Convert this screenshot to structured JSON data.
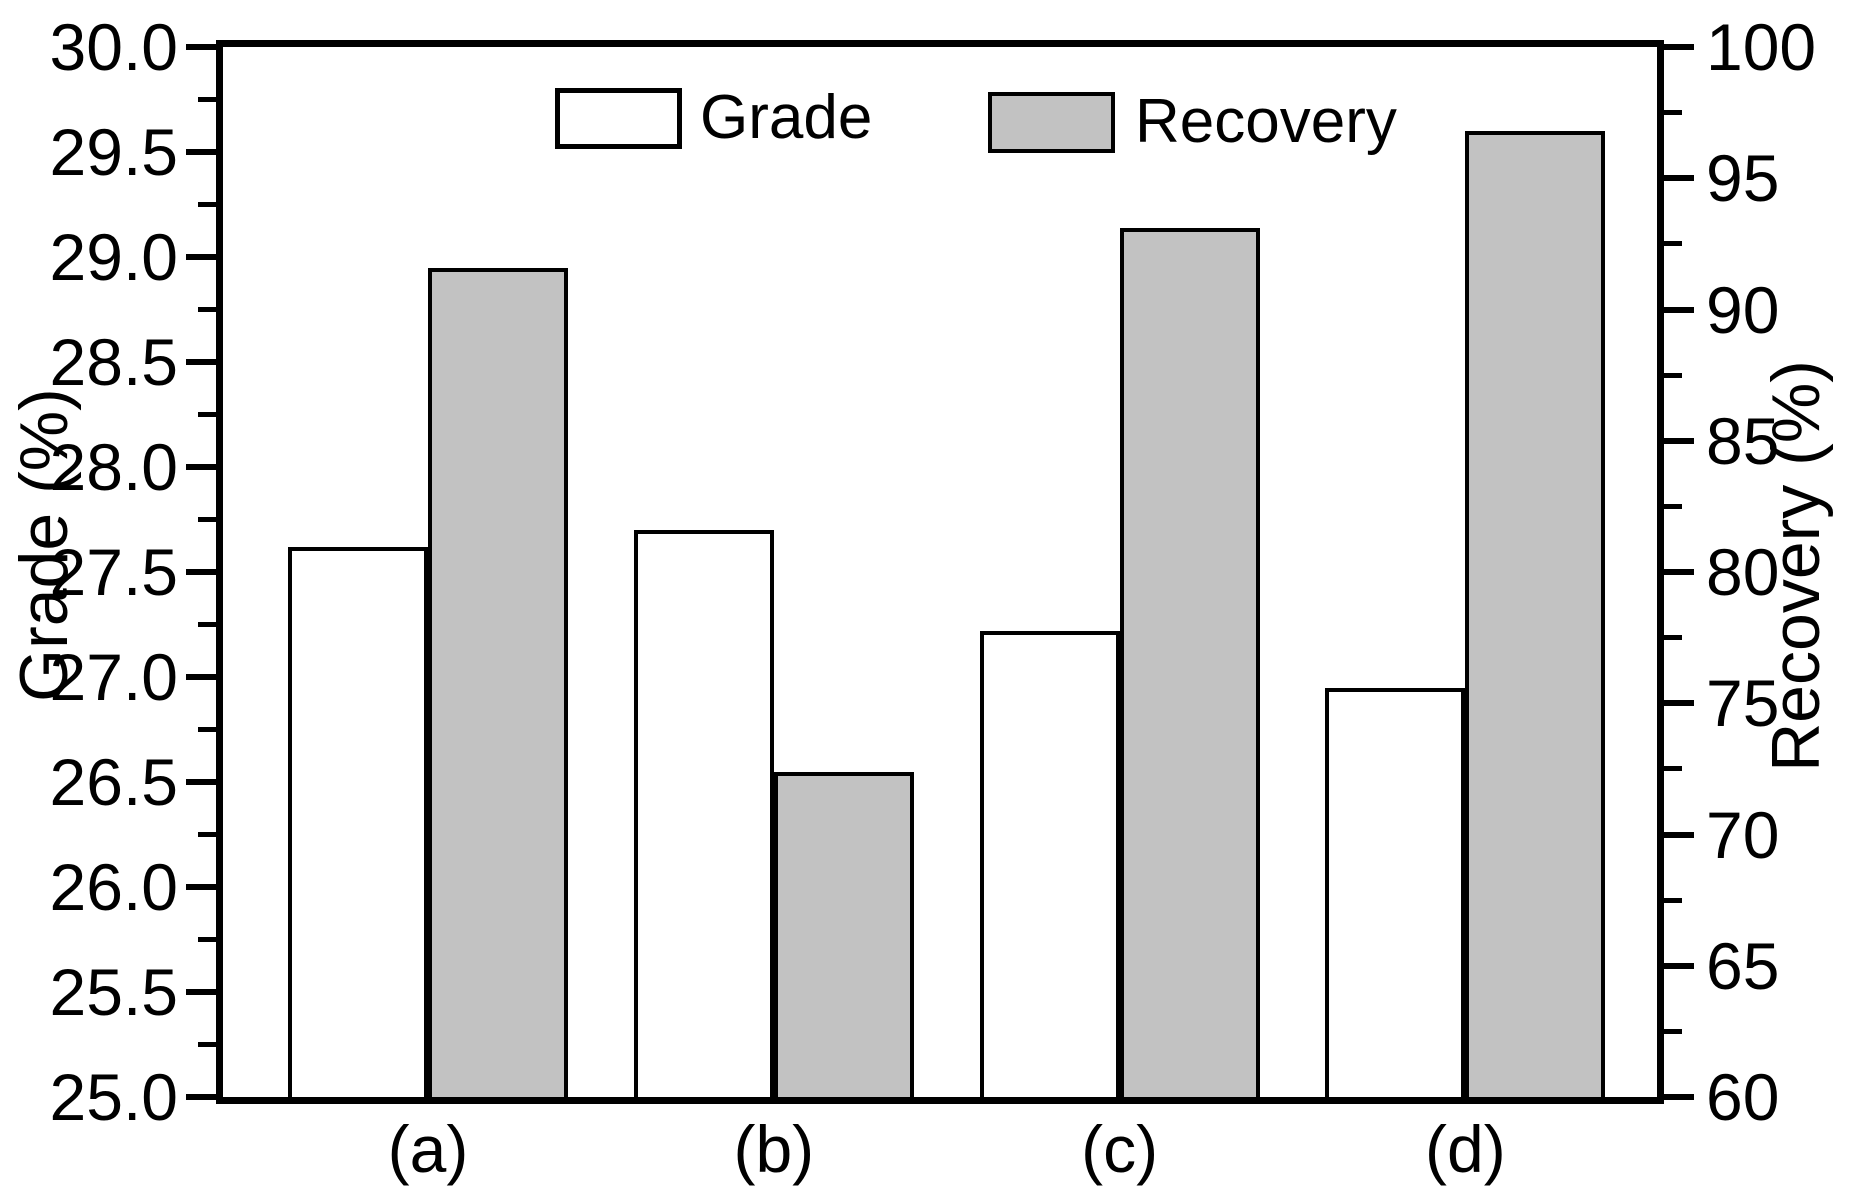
{
  "figure": {
    "background": "#ffffff",
    "ink_color": "#000000"
  },
  "chart_data": {
    "type": "bar",
    "categories": [
      "(a)",
      "(b)",
      "(c)",
      "(d)"
    ],
    "series": [
      {
        "name": "Grade",
        "axis": "left",
        "fill": "#ffffff",
        "values": [
          27.62,
          27.7,
          27.22,
          26.95
        ]
      },
      {
        "name": "Recovery",
        "axis": "right",
        "fill": "#c2c2c2",
        "values": [
          91.6,
          72.4,
          93.1,
          96.8
        ]
      }
    ],
    "left_axis": {
      "label": "Grade (%)",
      "min": 25.0,
      "max": 30.0,
      "major_step": 0.5,
      "minor_step": 0.25,
      "tick_labels": [
        "25.0",
        "25.5",
        "26.0",
        "26.5",
        "27.0",
        "27.5",
        "28.0",
        "28.5",
        "29.0",
        "29.5",
        "30.0"
      ]
    },
    "right_axis": {
      "label": "Recovery (%)",
      "min": 60,
      "max": 100,
      "major_step": 5,
      "minor_step": 2.5,
      "tick_labels": [
        "60",
        "65",
        "70",
        "75",
        "80",
        "85",
        "90",
        "95",
        "100"
      ]
    },
    "xlabel": "",
    "title": "",
    "grid": false,
    "legend": {
      "position": "top-inside",
      "entries": [
        {
          "label": "Grade",
          "fill": "#ffffff"
        },
        {
          "label": "Recovery",
          "fill": "#c2c2c2"
        }
      ]
    }
  }
}
